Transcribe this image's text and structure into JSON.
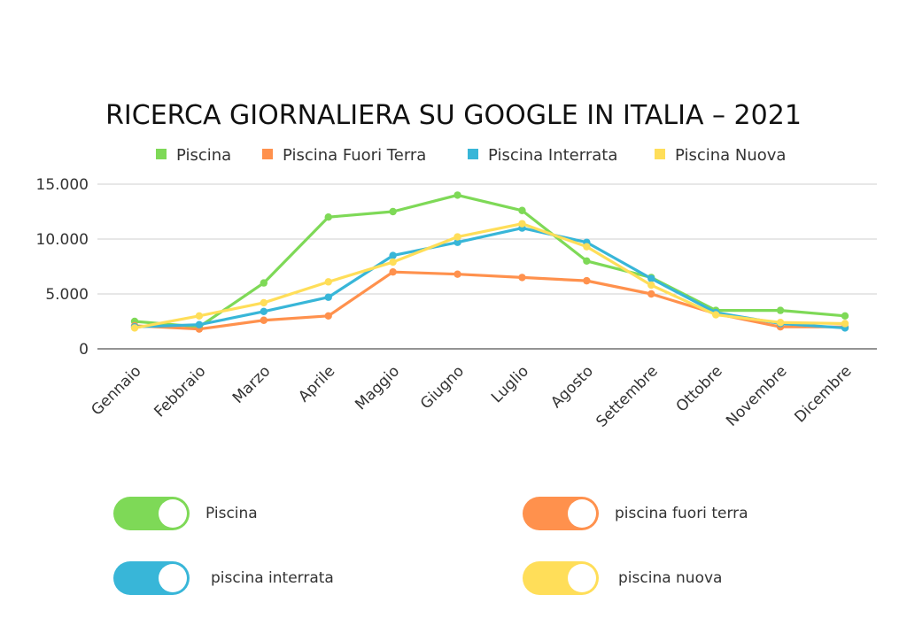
{
  "chart_data": {
    "type": "line",
    "title": "RICERCA GIORNALIERA SU GOOGLE IN ITALIA – 2021",
    "categories": [
      "Gennaio",
      "Febbraio",
      "Marzo",
      "Aprile",
      "Maggio",
      "Giugno",
      "Luglio",
      "Agosto",
      "Settembre",
      "Ottobre",
      "Novembre",
      "Dicembre"
    ],
    "series": [
      {
        "name": "Piscina",
        "color": "#7ed957",
        "values": [
          2500,
          2000,
          6000,
          12000,
          12500,
          14000,
          12600,
          8000,
          6500,
          3500,
          3500,
          3000
        ]
      },
      {
        "name": "Piscina Fuori Terra",
        "color": "#ff914d",
        "values": [
          2100,
          1800,
          2600,
          3000,
          7000,
          6800,
          6500,
          6200,
          5000,
          3200,
          2000,
          2000
        ]
      },
      {
        "name": "Piscina Interrata",
        "color": "#38b6d8",
        "values": [
          2000,
          2200,
          3400,
          4700,
          8500,
          9700,
          11000,
          9700,
          6400,
          3300,
          2300,
          1900
        ]
      },
      {
        "name": "Piscina Nuova",
        "color": "#ffde59",
        "values": [
          1900,
          3000,
          4200,
          6100,
          7900,
          10200,
          11400,
          9300,
          5800,
          3100,
          2400,
          2300
        ]
      }
    ],
    "ylim": [
      0,
      15000
    ],
    "yticks": [
      "0",
      "5.000",
      "10.000",
      "15.000"
    ],
    "ytick_values": [
      0,
      5000,
      10000,
      15000
    ],
    "grid": true,
    "legend_position": "top"
  },
  "toggles": [
    {
      "label": "Piscina",
      "color": "#7ed957"
    },
    {
      "label": "piscina fuori terra",
      "color": "#ff914d"
    },
    {
      "label": "piscina interrata",
      "color": "#38b6d8"
    },
    {
      "label": "piscina nuova",
      "color": "#ffde59"
    }
  ]
}
